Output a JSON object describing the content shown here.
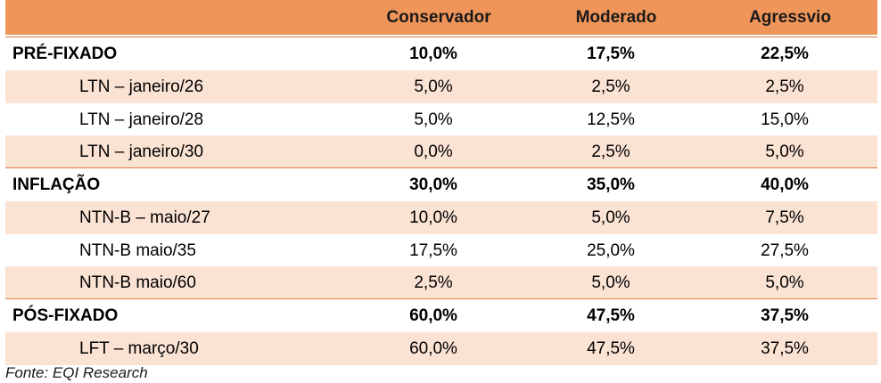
{
  "header": {
    "columns": [
      "Conservador",
      "Moderado",
      "Agressvio"
    ]
  },
  "rows": [
    {
      "label": "PRÉ-FIXADO",
      "values": [
        "10,0%",
        "17,5%",
        "22,5%"
      ]
    },
    {
      "label": "LTN – janeiro/26",
      "values": [
        "5,0%",
        "2,5%",
        "2,5%"
      ]
    },
    {
      "label": "LTN – janeiro/28",
      "values": [
        "5,0%",
        "12,5%",
        "15,0%"
      ]
    },
    {
      "label": "LTN – janeiro/30",
      "values": [
        "0,0%",
        "2,5%",
        "5,0%"
      ]
    },
    {
      "label": "INFLAÇÃO",
      "values": [
        "30,0%",
        "35,0%",
        "40,0%"
      ]
    },
    {
      "label": "NTN-B – maio/27",
      "values": [
        "10,0%",
        "5,0%",
        "7,5%"
      ]
    },
    {
      "label": "NTN-B maio/35",
      "values": [
        "17,5%",
        "25,0%",
        "27,5%"
      ]
    },
    {
      "label": "NTN-B maio/60",
      "values": [
        "2,5%",
        "5,0%",
        "5,0%"
      ]
    },
    {
      "label": "PÓS-FIXADO",
      "values": [
        "60,0%",
        "47,5%",
        "37,5%"
      ]
    },
    {
      "label": "LFT – março/30",
      "values": [
        "60,0%",
        "47,5%",
        "37,5%"
      ]
    }
  ],
  "footer": {
    "source": "Fonte: EQI Research"
  },
  "colors": {
    "header_bg": "#f0955a",
    "row_shade": "#fbe3d4",
    "separator": "#e07a3e"
  }
}
